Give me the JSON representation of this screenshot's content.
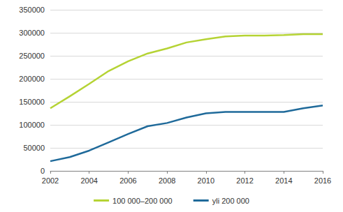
{
  "chart_data": {
    "type": "line",
    "x": [
      2002,
      2003,
      2004,
      2005,
      2006,
      2007,
      2008,
      2009,
      2010,
      2011,
      2012,
      2013,
      2014,
      2015,
      2016
    ],
    "series": [
      {
        "name": "100 000–200 000",
        "color": "#b5d334",
        "values": [
          136000,
          162000,
          189000,
          217000,
          238000,
          255000,
          266000,
          279000,
          286000,
          292000,
          294000,
          294000,
          295000,
          297000,
          297000
        ]
      },
      {
        "name": "yli 200 000",
        "color": "#1f6a9a",
        "values": [
          21000,
          30000,
          44000,
          62000,
          80000,
          97000,
          104000,
          116000,
          125000,
          128000,
          128000,
          128000,
          128000,
          136000,
          142000
        ]
      }
    ],
    "xlim": [
      2002,
      2016
    ],
    "xticks": [
      2002,
      2004,
      2006,
      2008,
      2010,
      2012,
      2014,
      2016
    ],
    "ylim": [
      0,
      350000
    ],
    "yticks": [
      0,
      50000,
      100000,
      150000,
      200000,
      250000,
      300000,
      350000
    ],
    "grid": true,
    "legend": "bottom"
  }
}
